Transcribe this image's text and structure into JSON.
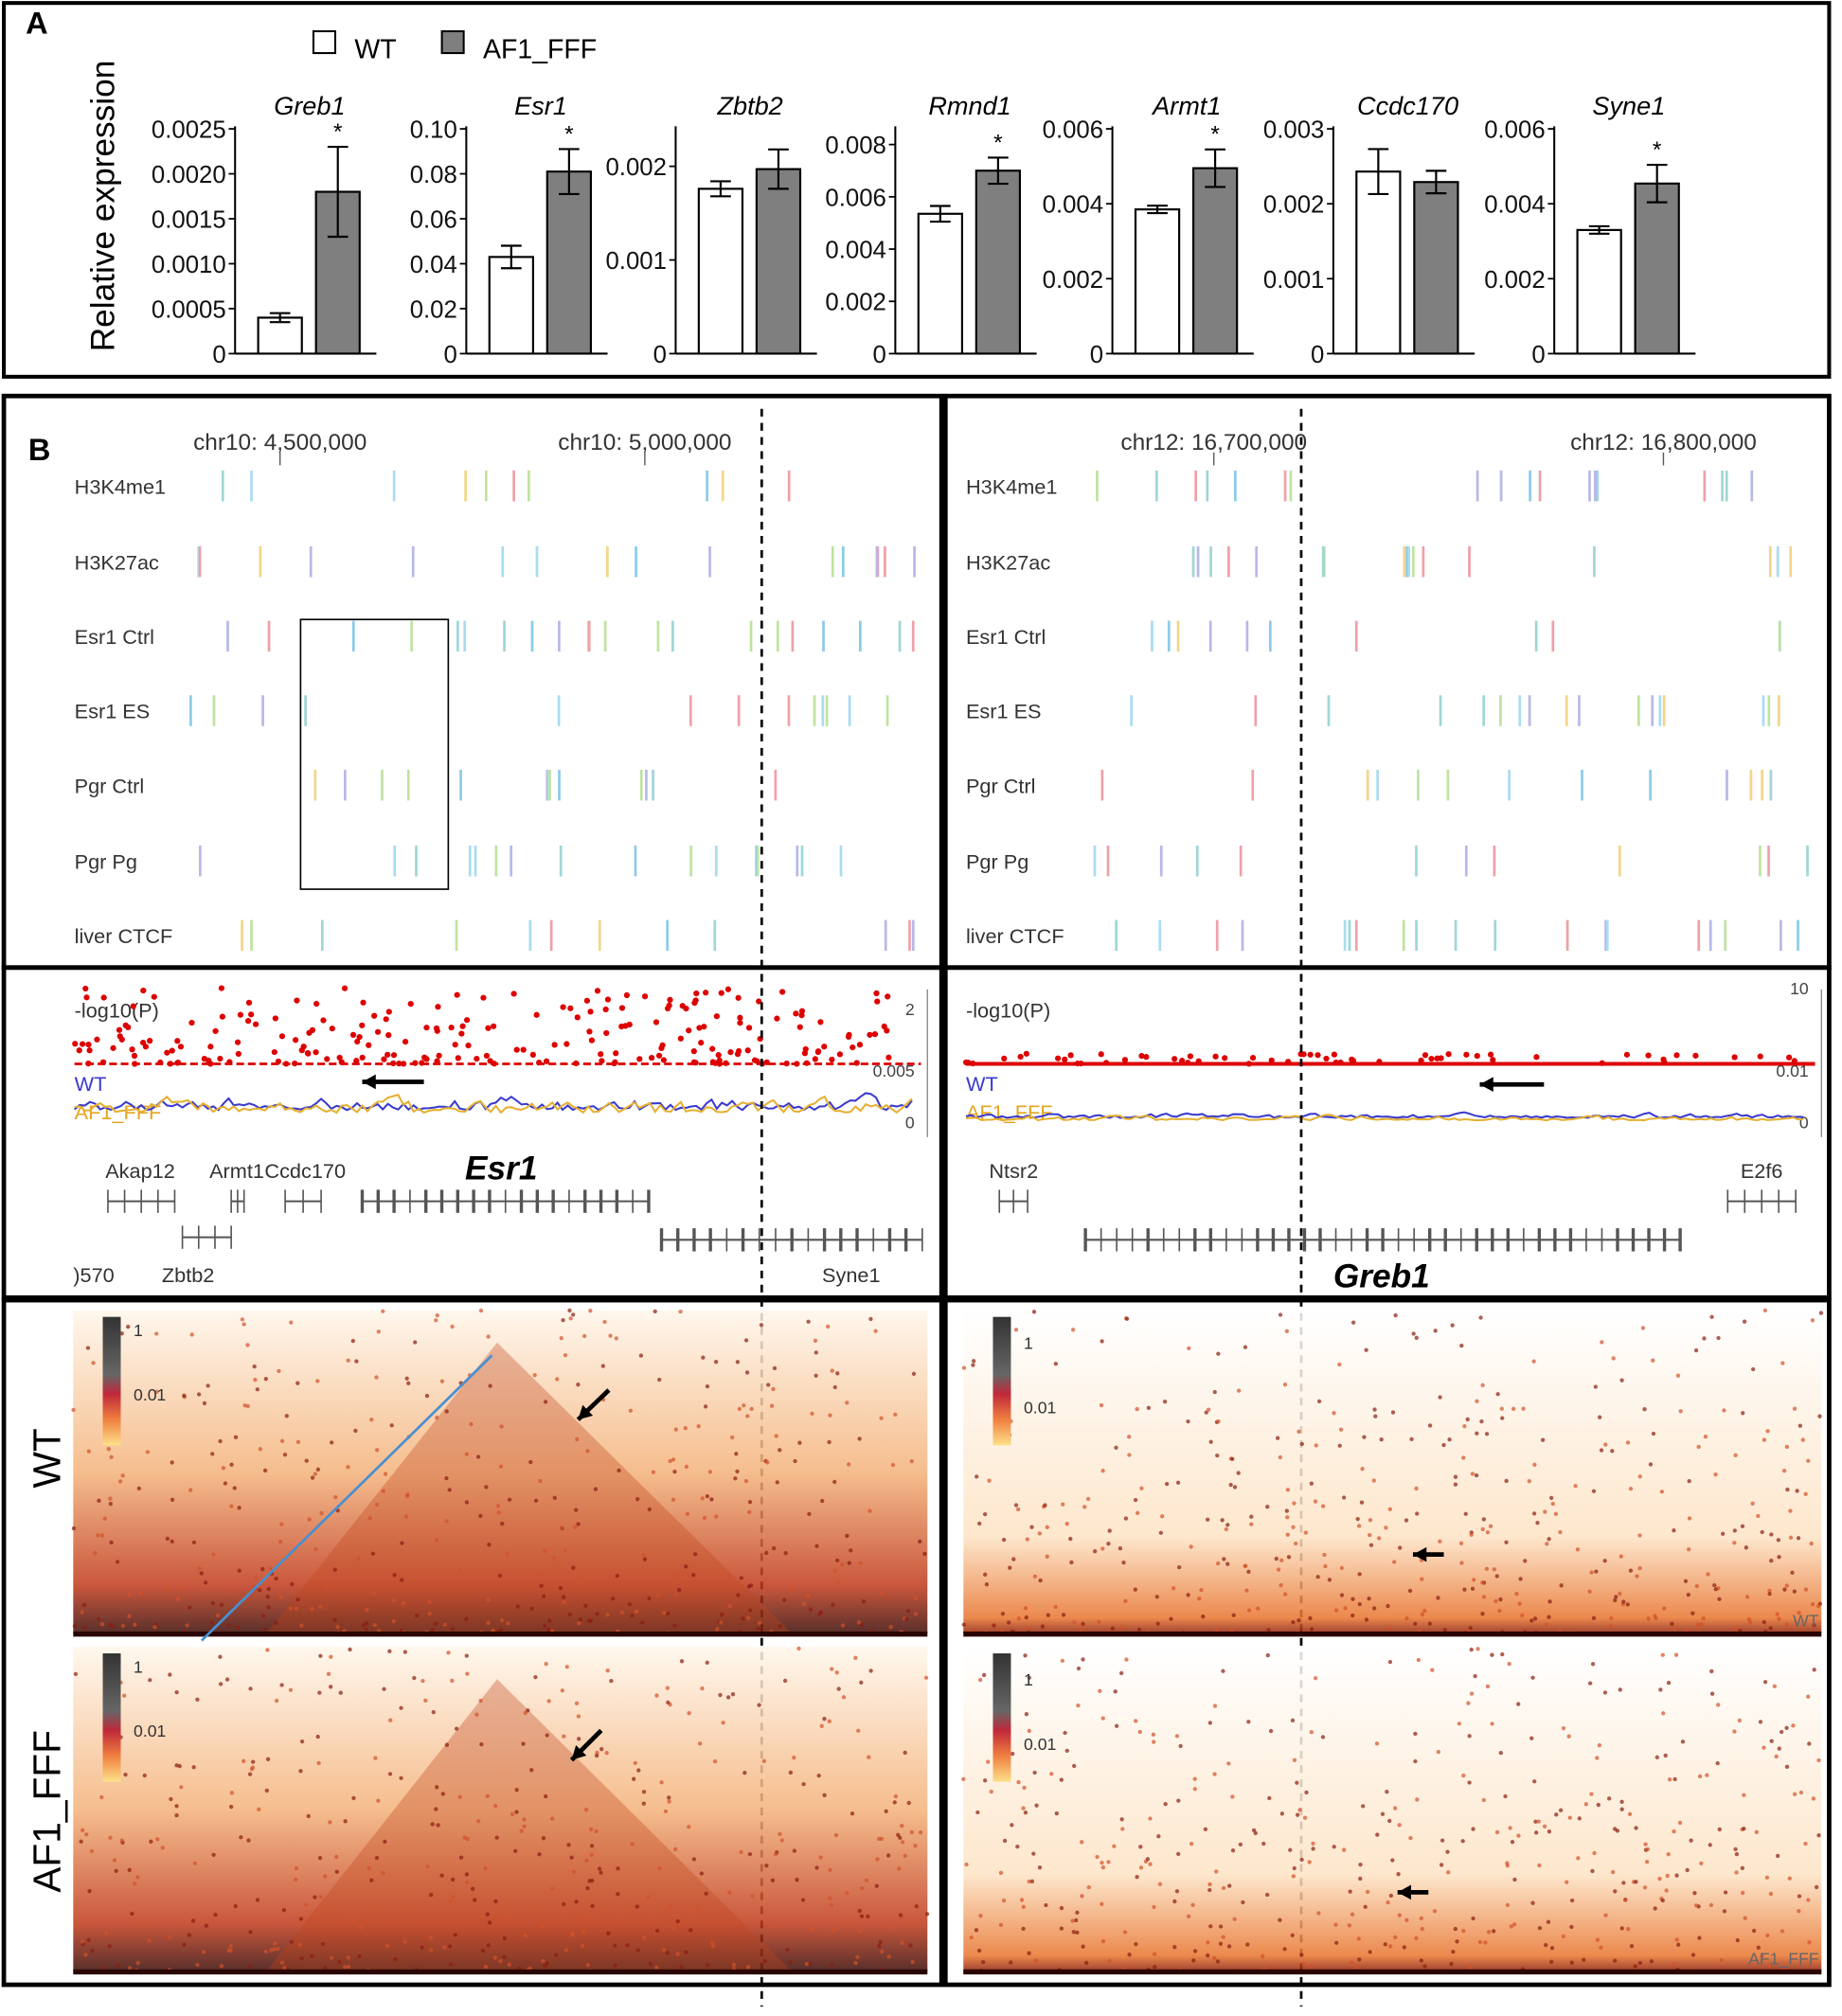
{
  "panel_a": {
    "label": "A",
    "ylabel": "Relative expression"
  },
  "chart_data": {
    "type": "bar",
    "series": [
      {
        "name": "WT",
        "color": "#ffffff"
      },
      {
        "name": "AF1_FFF",
        "color": "#7f7f7f"
      }
    ],
    "panels": [
      {
        "title": "Greb1",
        "ylim": [
          0,
          0.0025
        ],
        "yticks": [
          0,
          0.0005,
          {
            "value": 0.001,
            "label": "0.0010"
          },
          0.0015,
          {
            "value": 0.002,
            "label": "0.0020"
          },
          0.0025
        ],
        "values": [
          0.0004,
          0.0018
        ],
        "errors": [
          5e-05,
          0.0005
        ],
        "annotation": "*"
      },
      {
        "title": "Esr1",
        "ylim": [
          0,
          0.1
        ],
        "yticks": [
          0,
          0.02,
          0.04,
          0.06,
          0.08,
          {
            "value": 0.1,
            "label": "0.10"
          }
        ],
        "values": [
          0.043,
          0.081
        ],
        "errors": [
          0.005,
          0.01
        ],
        "annotation": "*"
      },
      {
        "title": "Zbtb2",
        "ylim": [
          0,
          0.0024
        ],
        "yticks": [
          0,
          0.001,
          0.002
        ],
        "values": [
          0.00176,
          0.00197
        ],
        "errors": [
          8e-05,
          0.00021
        ]
      },
      {
        "title": "Rmnd1",
        "ylim": [
          0,
          0.0086
        ],
        "yticks": [
          0,
          0.002,
          0.004,
          0.006,
          0.008
        ],
        "values": [
          0.00535,
          0.007
        ],
        "errors": [
          0.0003,
          0.0005
        ],
        "annotation": "*"
      },
      {
        "title": "Armt1",
        "ylim": [
          0,
          0.006
        ],
        "yticks": [
          0,
          0.002,
          0.004,
          0.006
        ],
        "values": [
          0.00385,
          0.00495
        ],
        "errors": [
          0.0001,
          0.0005
        ],
        "annotation": "*"
      },
      {
        "title": "Ccdc170",
        "ylim": [
          0,
          0.003
        ],
        "yticks": [
          0,
          0.001,
          0.002,
          0.003
        ],
        "values": [
          0.00243,
          0.00229
        ],
        "errors": [
          0.0003,
          0.00015
        ]
      },
      {
        "title": "Syne1",
        "ylim": [
          0,
          0.006
        ],
        "yticks": [
          0,
          0.002,
          0.004,
          0.006
        ],
        "values": [
          0.0033,
          0.00454
        ],
        "errors": [
          0.0001,
          0.0005
        ],
        "annotation": "*"
      }
    ]
  },
  "panel_b": {
    "label": "B",
    "left": {
      "coords": [
        "chr10: 4,500,000",
        "chr10: 5,000,000"
      ],
      "tracks": [
        "H3K4me1",
        "H3K27ac",
        "Esr1 Ctrl",
        "Esr1 ES",
        "Pgr Ctrl",
        "Pgr Pg",
        "liver CTCF"
      ],
      "pvalue_label": "-log10(P)",
      "pvalue_ticks": [
        2,
        0.005,
        0
      ],
      "lines": [
        "WT",
        "AF1_FFF"
      ],
      "genes": [
        "Akap12",
        "Armt1",
        "Ccdc170",
        ")570",
        "Zbtb2",
        "Syne1"
      ],
      "focus_gene": "Esr1",
      "hic_maps": [
        {
          "scale": [
            1,
            0.01
          ]
        },
        {
          "scale": [
            1,
            0.01
          ]
        }
      ]
    },
    "right": {
      "coords": [
        "chr12: 16,700,000",
        "chr12: 16,800,000"
      ],
      "tracks": [
        "H3K4me1",
        "H3K27ac",
        "Esr1 Ctrl",
        "Esr1 ES",
        "Pgr Ctrl",
        "Pgr Pg",
        "liver CTCF"
      ],
      "pvalue_label": "-log10(P)",
      "pvalue_ticks": [
        10,
        0.01,
        0
      ],
      "lines": [
        "WT",
        "AF1_FFF"
      ],
      "genes": [
        "Ntsr2",
        "E2f6"
      ],
      "focus_gene": "Greb1",
      "hic_maps": [
        {
          "scale": [
            1,
            0.01
          ],
          "corner": "WT"
        },
        {
          "scale": [
            1,
            0.01
          ],
          "corner": "AF1_FFF"
        }
      ]
    },
    "hic_rows": [
      "WT",
      "AF1_FFF"
    ]
  }
}
